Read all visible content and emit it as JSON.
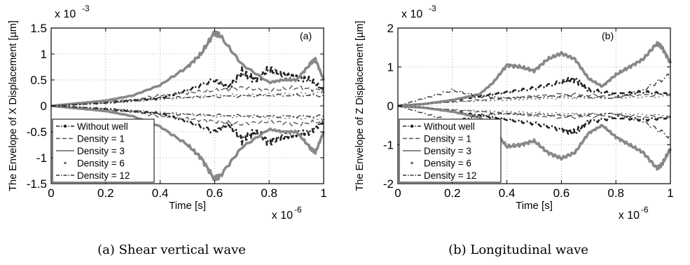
{
  "chart_data": [
    {
      "type": "line",
      "panel_label": "(a)",
      "caption_num": "(a)",
      "caption_text": "Shear vertical wave",
      "xlabel": "Time [s]",
      "ylabel": "The Envelope of X Displacement [µm]",
      "x_multiplier": "x 10",
      "x_exponent": "-6",
      "y_multiplier": "x 10",
      "y_exponent": "-3",
      "xlim": [
        0,
        1
      ],
      "ylim": [
        -1.5,
        1.5
      ],
      "x_ticks": [
        0,
        0.2,
        0.4,
        0.6,
        0.8,
        1
      ],
      "x_tick_labels": [
        "0",
        "0.2",
        "0.4",
        "0.6",
        "0.8",
        "1"
      ],
      "y_ticks": [
        -1.5,
        -1,
        -0.5,
        0,
        0.5,
        1,
        1.5
      ],
      "y_tick_labels": [
        "-1.5",
        "-1",
        "-0.5",
        "0",
        "0.5",
        "1",
        "1.5"
      ],
      "grid": true,
      "legend_position": "bottom-left",
      "series": [
        {
          "name": "Without well",
          "style": "dashdot-marker",
          "color": "#222222",
          "x": [
            0,
            0.1,
            0.2,
            0.3,
            0.4,
            0.5,
            0.6,
            0.65,
            0.7,
            0.75,
            0.8,
            0.85,
            0.9,
            0.95,
            1
          ],
          "y": [
            0,
            0.03,
            0.06,
            0.1,
            0.15,
            0.3,
            0.5,
            0.35,
            0.65,
            0.5,
            0.7,
            0.6,
            0.55,
            0.5,
            0.3
          ]
        },
        {
          "name": "Density = 1",
          "style": "dashed",
          "color": "#555555",
          "x": [
            0,
            0.1,
            0.2,
            0.3,
            0.4,
            0.5,
            0.6,
            0.7,
            0.8,
            0.9,
            1
          ],
          "y": [
            0,
            0.04,
            0.08,
            0.12,
            0.2,
            0.25,
            0.3,
            0.35,
            0.3,
            0.35,
            0.3
          ]
        },
        {
          "name": "Density = 3",
          "style": "solid",
          "color": "#888888",
          "x": [
            0,
            0.1,
            0.2,
            0.3,
            0.4,
            0.5,
            0.55,
            0.6,
            0.62,
            0.7,
            0.8,
            0.85,
            0.9,
            0.95,
            0.97,
            1
          ],
          "y": [
            0,
            0.05,
            0.1,
            0.2,
            0.4,
            0.75,
            1.0,
            1.42,
            1.35,
            0.8,
            0.45,
            0.5,
            0.5,
            0.8,
            0.9,
            0.5
          ]
        },
        {
          "name": "Density = 6",
          "style": "dotted",
          "color": "#666666",
          "x": [
            0,
            0.2,
            0.4,
            0.6,
            0.8,
            1
          ],
          "y": [
            0,
            0.05,
            0.12,
            0.2,
            0.22,
            0.25
          ]
        },
        {
          "name": "Density = 12",
          "style": "dashdot",
          "color": "#333333",
          "x": [
            0,
            0.2,
            0.4,
            0.6,
            0.8,
            1
          ],
          "y": [
            0,
            0.06,
            0.15,
            0.18,
            0.2,
            0.2
          ]
        }
      ]
    },
    {
      "type": "line",
      "panel_label": "(b)",
      "caption_num": "(b)",
      "caption_text": "Longitudinal wave",
      "xlabel": "Time [s]",
      "ylabel": "The Envelope of Z Displacement [µm]",
      "x_multiplier": "x 10",
      "x_exponent": "-6",
      "y_multiplier": "x 10",
      "y_exponent": "-3",
      "xlim": [
        0,
        1
      ],
      "ylim": [
        -2,
        2
      ],
      "x_ticks": [
        0,
        0.2,
        0.4,
        0.6,
        0.8,
        1
      ],
      "x_tick_labels": [
        "0",
        "0.2",
        "0.4",
        "0.6",
        "0.8",
        "1"
      ],
      "y_ticks": [
        -2,
        -1,
        0,
        1,
        2
      ],
      "y_tick_labels": [
        "-2",
        "-1",
        "0",
        "1",
        "2"
      ],
      "grid": true,
      "legend_position": "bottom-left",
      "series": [
        {
          "name": "Without well",
          "style": "dashdot-marker",
          "color": "#222222",
          "x": [
            0,
            0.1,
            0.2,
            0.3,
            0.4,
            0.5,
            0.6,
            0.65,
            0.7,
            0.8,
            0.9,
            1
          ],
          "y": [
            0,
            0.05,
            0.15,
            0.25,
            0.35,
            0.45,
            0.6,
            0.7,
            0.4,
            0.3,
            0.35,
            0.3
          ]
        },
        {
          "name": "Density = 1",
          "style": "dashed",
          "color": "#555555",
          "x": [
            0,
            0.2,
            0.4,
            0.6,
            0.8,
            1
          ],
          "y": [
            0,
            0.1,
            0.2,
            0.3,
            0.25,
            0.3
          ]
        },
        {
          "name": "Density = 3",
          "style": "solid",
          "color": "#888888",
          "x": [
            0,
            0.1,
            0.2,
            0.3,
            0.35,
            0.4,
            0.45,
            0.5,
            0.55,
            0.6,
            0.65,
            0.7,
            0.75,
            0.8,
            0.85,
            0.9,
            0.95,
            0.97,
            1
          ],
          "y": [
            0,
            0.05,
            0.15,
            0.3,
            0.6,
            1.05,
            1.0,
            0.9,
            1.2,
            1.35,
            1.2,
            0.7,
            0.5,
            0.8,
            1.0,
            1.2,
            1.6,
            1.5,
            1.1
          ]
        },
        {
          "name": "Density = 6",
          "style": "dotted",
          "color": "#666666",
          "x": [
            0,
            0.2,
            0.4,
            0.6,
            0.8,
            1
          ],
          "y": [
            0,
            0.1,
            0.15,
            0.2,
            0.2,
            0.25
          ]
        },
        {
          "name": "Density = 12",
          "style": "dashdot",
          "color": "#333333",
          "x": [
            0,
            0.1,
            0.2,
            0.3,
            0.4,
            0.6,
            0.8,
            0.9,
            1
          ],
          "y": [
            0,
            0.2,
            0.4,
            0.25,
            0.2,
            0.25,
            0.2,
            0.4,
            0.8
          ]
        }
      ]
    }
  ]
}
